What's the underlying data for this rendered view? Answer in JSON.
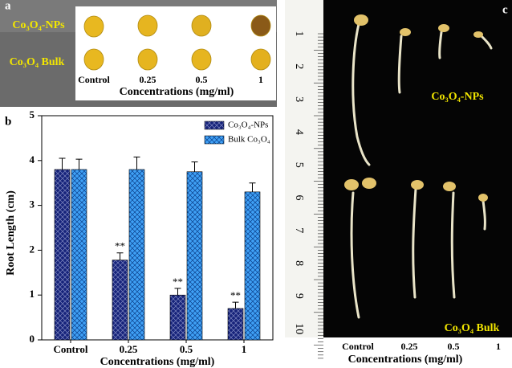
{
  "panel_a": {
    "label": "a",
    "row_labels": [
      "Co₃O₄-NPs",
      "Co₃O₄ Bulk"
    ],
    "categories": [
      "Control",
      "0.25",
      "0.5",
      "1"
    ],
    "xlabel": "Concentrations (mg/ml)"
  },
  "panel_c": {
    "label": "c",
    "group_labels": [
      "Co₃O₄-NPs",
      "Co₃O₄ Bulk"
    ],
    "categories": [
      "Control",
      "0.25",
      "0.5",
      "1"
    ],
    "xlabel": "Concentrations (mg/ml)",
    "ruler_labels": [
      1,
      2,
      3,
      4,
      5,
      6,
      7,
      8,
      9,
      10
    ]
  },
  "chart_data": {
    "type": "bar",
    "panel_label": "b",
    "xlabel": "Concentrations (mg/ml)",
    "ylabel": "Root Length (cm)",
    "categories": [
      "Control",
      "0.25",
      "0.5",
      "1"
    ],
    "series": [
      {
        "name": "Co₃O₄-NPs",
        "color": "#16237a",
        "values": [
          3.8,
          1.78,
          1.0,
          0.7
        ],
        "errors": [
          0.25,
          0.16,
          0.15,
          0.14
        ],
        "annotations": [
          null,
          "**",
          "**",
          "**"
        ]
      },
      {
        "name": "Bulk Co₃O₄",
        "color": "#3fa0f5",
        "values": [
          3.8,
          3.8,
          3.75,
          3.3
        ],
        "errors": [
          0.23,
          0.28,
          0.22,
          0.2
        ],
        "annotations": [
          null,
          null,
          null,
          null
        ]
      }
    ],
    "ylim": [
      0,
      5
    ],
    "yticks": [
      0,
      1,
      2,
      3,
      4,
      5
    ],
    "legend": "upper right"
  }
}
